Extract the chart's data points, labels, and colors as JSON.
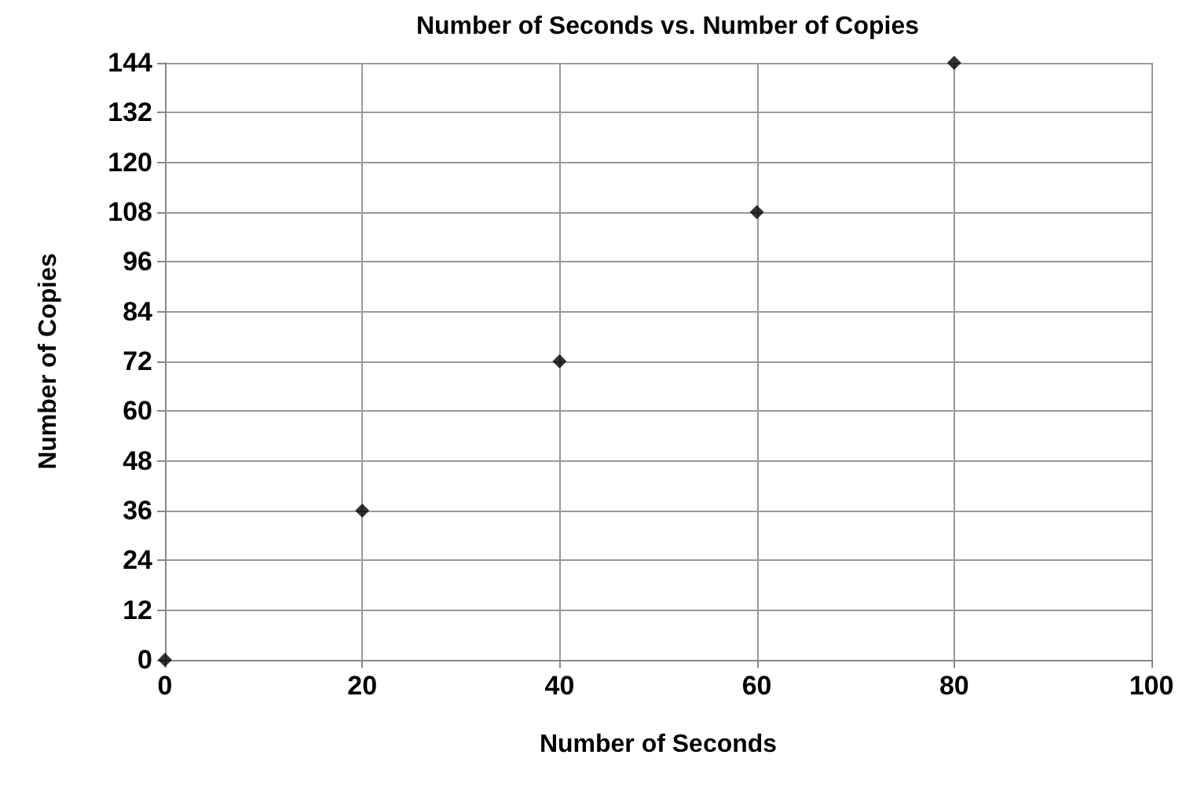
{
  "chart_data": {
    "type": "scatter",
    "title": "Number of Seconds vs. Number of Copies",
    "xlabel": "Number of Seconds",
    "ylabel": "Number of Copies",
    "x": [
      0,
      20,
      40,
      60,
      80
    ],
    "series": [
      {
        "color": "#000000",
        "values": [
          0,
          36,
          72,
          108,
          144
        ]
      }
    ],
    "xlim": [
      0,
      100
    ],
    "xticks": [
      0,
      20,
      40,
      60,
      80,
      100
    ],
    "ylim": [
      0,
      144
    ],
    "yticks": [
      0,
      12,
      24,
      36,
      48,
      60,
      72,
      84,
      96,
      108,
      120,
      132,
      144
    ],
    "grid": true,
    "marker": "diamond"
  }
}
